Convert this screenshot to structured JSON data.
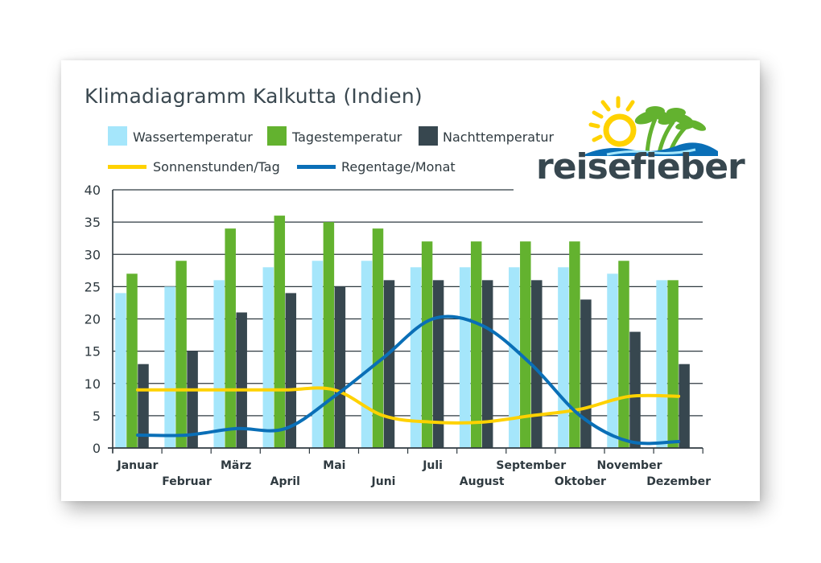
{
  "colors": {
    "wasser": "#a5e6fb",
    "tag": "#63b22f",
    "nacht": "#37474f",
    "sonne": "#ffd200",
    "regen": "#0a6fb7",
    "grid": "#2f3a40",
    "text": "#2f3a40"
  },
  "logo": {
    "text": "reisefieber"
  },
  "chart_data": {
    "type": "bar",
    "title": "Klimadiagramm Kalkutta (Indien)",
    "categories": [
      "Januar",
      "Februar",
      "März",
      "April",
      "Mai",
      "Juni",
      "Juli",
      "August",
      "September",
      "Oktober",
      "November",
      "Dezember"
    ],
    "ylim": [
      0,
      40
    ],
    "yticks": [
      0,
      5,
      10,
      15,
      20,
      25,
      30,
      35,
      40
    ],
    "grid": true,
    "legend_position": "top-left",
    "series": [
      {
        "name": "Wassertemperatur",
        "kind": "bar",
        "values": [
          24,
          25,
          26,
          28,
          29,
          29,
          28,
          28,
          28,
          28,
          27,
          26
        ]
      },
      {
        "name": "Tagestemperatur",
        "kind": "bar",
        "values": [
          27,
          29,
          34,
          36,
          35,
          34,
          32,
          32,
          32,
          32,
          29,
          26
        ]
      },
      {
        "name": "Nachttemperatur",
        "kind": "bar",
        "values": [
          13,
          15,
          21,
          24,
          25,
          26,
          26,
          26,
          26,
          23,
          18,
          13
        ]
      },
      {
        "name": "Sonnenstunden/Tag",
        "kind": "line",
        "values": [
          9,
          9,
          9,
          9,
          9,
          5,
          4,
          4,
          5,
          6,
          8,
          8
        ]
      },
      {
        "name": "Regentage/Monat",
        "kind": "line",
        "values": [
          2,
          2,
          3,
          3,
          8,
          14,
          20,
          19,
          13,
          5,
          1,
          1
        ]
      }
    ]
  }
}
